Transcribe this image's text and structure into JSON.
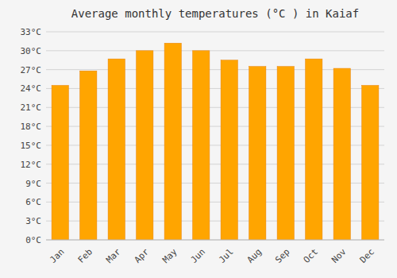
{
  "chart_data": {
    "type": "bar",
    "title": "Average monthly temperatures (°C ) in Kaiaf",
    "categories": [
      "Jan",
      "Feb",
      "Mar",
      "Apr",
      "May",
      "Jun",
      "Jul",
      "Aug",
      "Sep",
      "Oct",
      "Nov",
      "Dec"
    ],
    "values": [
      24.5,
      26.8,
      28.7,
      30.0,
      31.2,
      30.0,
      28.5,
      27.5,
      27.5,
      28.7,
      27.2,
      24.5
    ],
    "color": "#FFA500",
    "ylim": [
      0,
      33
    ],
    "yticks": [
      {
        "value": 0,
        "label": "0°C"
      },
      {
        "value": 3,
        "label": "3°C"
      },
      {
        "value": 6,
        "label": "6°C"
      },
      {
        "value": 9,
        "label": "9°C"
      },
      {
        "value": 12,
        "label": "12°C"
      },
      {
        "value": 15,
        "label": "15°C"
      },
      {
        "value": 18,
        "label": "18°C"
      },
      {
        "value": 21,
        "label": "21°C"
      },
      {
        "value": 24,
        "label": "24°C"
      },
      {
        "value": 27,
        "label": "27°C"
      },
      {
        "value": 30,
        "label": "30°C"
      },
      {
        "value": 33,
        "label": "33°C"
      }
    ],
    "grid": true
  }
}
